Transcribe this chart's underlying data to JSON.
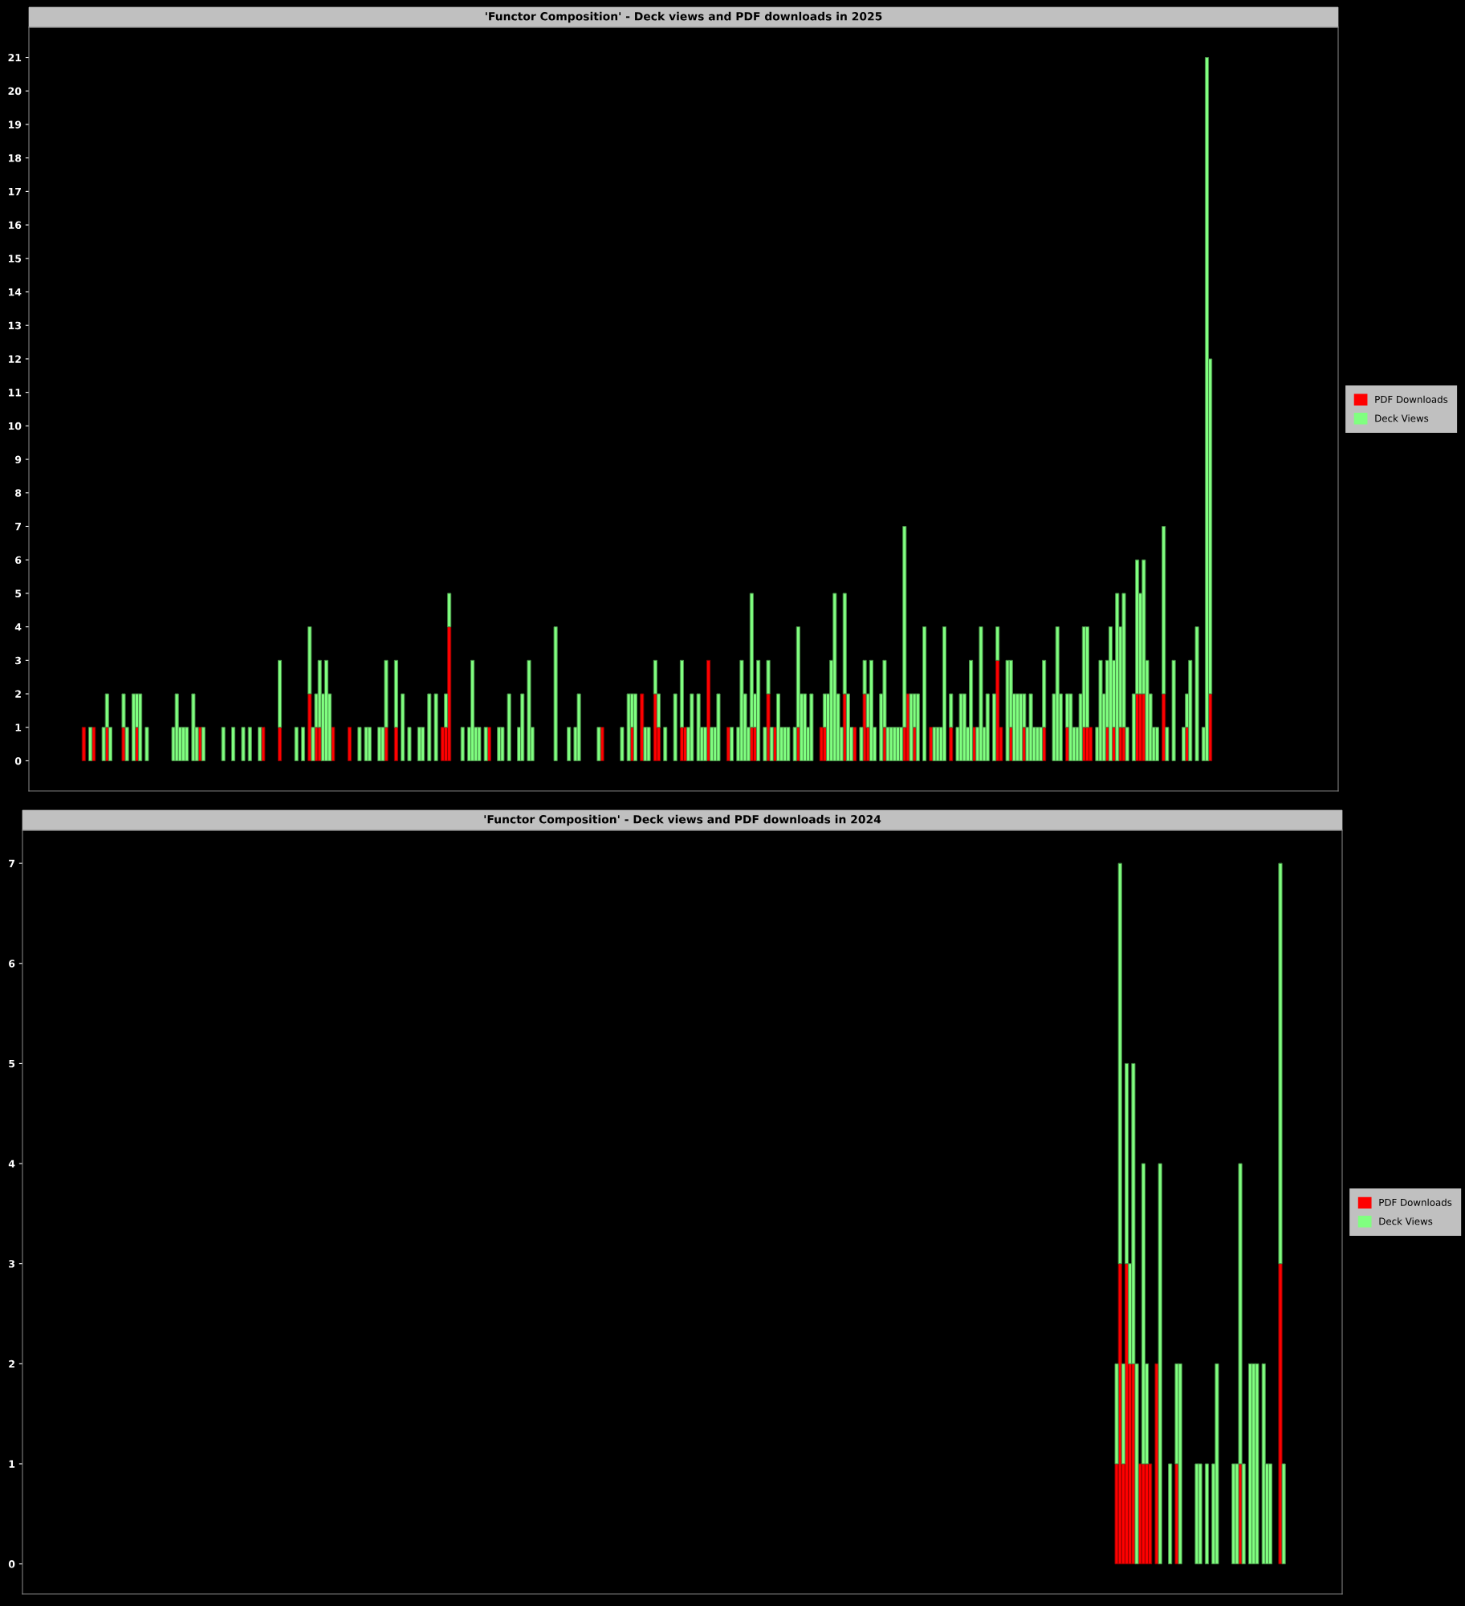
{
  "chart_data": [
    {
      "type": "bar",
      "title": "'Functor Composition' - Deck views and PDF downloads in 2025",
      "stacked": true,
      "legend": "right",
      "tick_labels": "y",
      "ylim": [
        -0.9,
        21.9
      ],
      "yticks": [
        0,
        1,
        2,
        3,
        4,
        5,
        6,
        7,
        8,
        9,
        10,
        11,
        12,
        13,
        14,
        15,
        16,
        17,
        18,
        19,
        20,
        21
      ],
      "categories": [
        null,
        null,
        null,
        null,
        null,
        null,
        null,
        null,
        null,
        null,
        null,
        null,
        null,
        null,
        null,
        null,
        null,
        null,
        null,
        null,
        null,
        null,
        null,
        null,
        null,
        null,
        null,
        null,
        null,
        null,
        null,
        null,
        null,
        null,
        null,
        null,
        null,
        null,
        null,
        null,
        null,
        null,
        null,
        null,
        null,
        null,
        null,
        null,
        null,
        null,
        null,
        null,
        null,
        null,
        null,
        null,
        null,
        null,
        null,
        null,
        null,
        null,
        null,
        null,
        null,
        null,
        null,
        null,
        null,
        null,
        null,
        null,
        null,
        null,
        null,
        null,
        null,
        null,
        null,
        null,
        null,
        null,
        null,
        null,
        null,
        null,
        null,
        null,
        null,
        null,
        null,
        null,
        null,
        null,
        null,
        null,
        null,
        null,
        null,
        null,
        null,
        null,
        null,
        null,
        null,
        null,
        null,
        null,
        null,
        null,
        null,
        null,
        null,
        null,
        null,
        null,
        null,
        null,
        null,
        null,
        null,
        null,
        null,
        null,
        null,
        null,
        null,
        null,
        null,
        null,
        null,
        null,
        null,
        null,
        null,
        null,
        null,
        null,
        null,
        null,
        null,
        null,
        null,
        null,
        null,
        null,
        null,
        null,
        null,
        null,
        null,
        null,
        null,
        null,
        null,
        null,
        null,
        null,
        null,
        null,
        null,
        null,
        null,
        null,
        null,
        null,
        null,
        null,
        null,
        null,
        null,
        null,
        null,
        null,
        null,
        null,
        null,
        null,
        null,
        null,
        null,
        null,
        null,
        null,
        null,
        null,
        null,
        null,
        null,
        null,
        null,
        null,
        null,
        null,
        null,
        null,
        null,
        null,
        null,
        null,
        null,
        null,
        null,
        null,
        null,
        null,
        null,
        null,
        null,
        null,
        null,
        null,
        null,
        null,
        null,
        null,
        null,
        null,
        null,
        null,
        null,
        null,
        null,
        null,
        null,
        null,
        null,
        null,
        null,
        null,
        null,
        null,
        null,
        null,
        null,
        null,
        null,
        null,
        null,
        null,
        null,
        null,
        null,
        null,
        null,
        null,
        null,
        null,
        null,
        null,
        null,
        null,
        null,
        null,
        null,
        null,
        null,
        null,
        null,
        null,
        null,
        null,
        null,
        null,
        null,
        null,
        null,
        null,
        null,
        null,
        null,
        null,
        null,
        null,
        null,
        null,
        null,
        null,
        null,
        null,
        null,
        null,
        null,
        null,
        null,
        null,
        null,
        null,
        null,
        null,
        null,
        null,
        null,
        null,
        null,
        null,
        null,
        null,
        null,
        null,
        null,
        null,
        null,
        null,
        null,
        null,
        null,
        null,
        null,
        null,
        null,
        null,
        null,
        null,
        null,
        null,
        null,
        null,
        null,
        null,
        null,
        null,
        null,
        null,
        null,
        null,
        null,
        null,
        null,
        null,
        null,
        null,
        null,
        null,
        null,
        null,
        null,
        null,
        null,
        null,
        null,
        null,
        null,
        null,
        null,
        null,
        null,
        null,
        null,
        null,
        null,
        null,
        null,
        null,
        null,
        null,
        null,
        null,
        null,
        null,
        null,
        null,
        null,
        null,
        null,
        null,
        null,
        null,
        null,
        null,
        null,
        null,
        null,
        null,
        null,
        null,
        null,
        null,
        null,
        null,
        null,
        null,
        null,
        null,
        null,
        null,
        null,
        null,
        null,
        null,
        null,
        null,
        null,
        null
      ],
      "series": [
        {
          "name": "PDF Downloads",
          "color": "#ff0000",
          "values": [
            null,
            null,
            null,
            null,
            null,
            null,
            null,
            null,
            null,
            null,
            null,
            null,
            null,
            null,
            null,
            0,
            1,
            0,
            0,
            1,
            0,
            0,
            0,
            1,
            0,
            0,
            0,
            0,
            1,
            0,
            0,
            0,
            1,
            0,
            0,
            0,
            0,
            0,
            0,
            0,
            0,
            0,
            0,
            0,
            0,
            0,
            0,
            0,
            0,
            0,
            0,
            1,
            0,
            0,
            0,
            0,
            0,
            0,
            0,
            0,
            0,
            0,
            0,
            0,
            0,
            0,
            0,
            0,
            0,
            0,
            1,
            0,
            0,
            0,
            0,
            1,
            0,
            0,
            0,
            0,
            0,
            0,
            0,
            0,
            2,
            0,
            1,
            1,
            0,
            0,
            0,
            1,
            0,
            0,
            0,
            0,
            1,
            0,
            0,
            0,
            0,
            0,
            0,
            0,
            0,
            0,
            0,
            1,
            0,
            0,
            1,
            0,
            0,
            0,
            0,
            0,
            0,
            0,
            0,
            0,
            0,
            0,
            0,
            0,
            1,
            1,
            4,
            0,
            0,
            0,
            0,
            0,
            0,
            0,
            0,
            0,
            0,
            0,
            1,
            0,
            0,
            0,
            0,
            0,
            0,
            0,
            0,
            0,
            0,
            0,
            0,
            0,
            0,
            0,
            0,
            0,
            0,
            0,
            0,
            0,
            0,
            0,
            0,
            0,
            0,
            0,
            0,
            0,
            0,
            0,
            0,
            0,
            1,
            0,
            0,
            0,
            0,
            0,
            0,
            0,
            0,
            1,
            0,
            0,
            2,
            0,
            0,
            0,
            2,
            1,
            0,
            0,
            0,
            0,
            0,
            0,
            1,
            1,
            0,
            0,
            0,
            0,
            0,
            0,
            3,
            0,
            0,
            0,
            0,
            0,
            1,
            0,
            0,
            0,
            0,
            0,
            0,
            1,
            1,
            0,
            0,
            0,
            2,
            0,
            1,
            0,
            0,
            0,
            0,
            0,
            0,
            1,
            0,
            0,
            0,
            0,
            0,
            0,
            1,
            1,
            0,
            0,
            0,
            0,
            0,
            2,
            0,
            0,
            1,
            0,
            0,
            2,
            1,
            0,
            0,
            0,
            0,
            1,
            0,
            0,
            0,
            0,
            0,
            1,
            2,
            0,
            1,
            0,
            0,
            0,
            0,
            1,
            0,
            0,
            0,
            0,
            0,
            1,
            0,
            0,
            0,
            0,
            0,
            0,
            1,
            0,
            0,
            0,
            0,
            0,
            0,
            3,
            1,
            0,
            0,
            1,
            0,
            0,
            0,
            1,
            0,
            0,
            0,
            0,
            0,
            1,
            0,
            0,
            0,
            0,
            0,
            0,
            1,
            0,
            0,
            0,
            0,
            1,
            1,
            1,
            0,
            0,
            0,
            0,
            1,
            0,
            1,
            0,
            1,
            1,
            0,
            0,
            0,
            2,
            2,
            2,
            0,
            0,
            0,
            0,
            0,
            2,
            0,
            0,
            0,
            0,
            0,
            0,
            1,
            0,
            0,
            0,
            0,
            0,
            0,
            2,
            0,
            0,
            0,
            0,
            0,
            0,
            0,
            0,
            0,
            0,
            0,
            0,
            0,
            0,
            0,
            0,
            0,
            0,
            0,
            0,
            0,
            0,
            0,
            0,
            null,
            null,
            null,
            null,
            null,
            null,
            null,
            null,
            null,
            null,
            null,
            null,
            null,
            null
          ]
        },
        {
          "name": "Deck Views",
          "color": "#80ff80",
          "values": [
            null,
            null,
            null,
            null,
            null,
            null,
            null,
            null,
            null,
            null,
            null,
            null,
            null,
            null,
            null,
            0,
            0,
            0,
            1,
            0,
            0,
            0,
            1,
            1,
            1,
            0,
            0,
            0,
            1,
            1,
            0,
            2,
            1,
            2,
            0,
            1,
            0,
            0,
            0,
            0,
            0,
            0,
            0,
            1,
            2,
            1,
            1,
            1,
            0,
            2,
            1,
            0,
            1,
            0,
            0,
            0,
            0,
            0,
            1,
            0,
            0,
            1,
            0,
            0,
            1,
            0,
            1,
            0,
            0,
            1,
            0,
            0,
            0,
            0,
            0,
            2,
            0,
            0,
            0,
            0,
            1,
            0,
            1,
            0,
            2,
            1,
            1,
            2,
            2,
            3,
            2,
            0,
            0,
            0,
            0,
            0,
            0,
            0,
            0,
            1,
            0,
            1,
            1,
            0,
            0,
            1,
            1,
            2,
            0,
            0,
            2,
            0,
            2,
            0,
            1,
            0,
            0,
            1,
            1,
            0,
            2,
            0,
            2,
            0,
            0,
            1,
            1,
            0,
            0,
            0,
            1,
            0,
            1,
            3,
            1,
            1,
            0,
            1,
            0,
            0,
            0,
            1,
            1,
            0,
            2,
            0,
            0,
            1,
            2,
            0,
            3,
            1,
            0,
            0,
            0,
            0,
            0,
            0,
            4,
            0,
            0,
            0,
            1,
            0,
            1,
            2,
            0,
            0,
            0,
            0,
            0,
            1,
            0,
            0,
            0,
            0,
            0,
            0,
            1,
            0,
            2,
            1,
            2,
            0,
            0,
            1,
            1,
            0,
            1,
            1,
            0,
            1,
            0,
            0,
            2,
            0,
            2,
            0,
            1,
            2,
            0,
            2,
            1,
            1,
            0,
            1,
            1,
            2,
            0,
            0,
            0,
            1,
            0,
            1,
            3,
            2,
            1,
            4,
            1,
            3,
            0,
            1,
            1,
            1,
            0,
            2,
            1,
            1,
            1,
            0,
            1,
            3,
            2,
            2,
            1,
            2,
            0,
            0,
            0,
            1,
            2,
            3,
            5,
            2,
            1,
            3,
            2,
            1,
            0,
            0,
            1,
            1,
            1,
            3,
            1,
            0,
            2,
            2,
            1,
            1,
            1,
            1,
            1,
            6,
            0,
            2,
            1,
            2,
            0,
            4,
            0,
            0,
            1,
            1,
            1,
            4,
            0,
            1,
            0,
            1,
            2,
            2,
            1,
            3,
            0,
            1,
            4,
            1,
            2,
            0,
            2,
            1,
            0,
            0,
            3,
            2,
            2,
            2,
            2,
            1,
            1,
            2,
            1,
            1,
            1,
            2,
            0,
            0,
            2,
            4,
            2,
            0,
            1,
            2,
            1,
            1,
            2,
            3,
            3,
            0,
            0,
            1,
            3,
            2,
            2,
            4,
            2,
            5,
            3,
            4,
            1,
            0,
            2,
            4,
            3,
            4,
            3,
            2,
            1,
            1,
            0,
            5,
            1,
            0,
            3,
            0,
            0,
            1,
            1,
            3,
            0,
            4,
            0,
            1,
            21,
            10,
            0,
            0,
            0,
            0,
            0,
            0,
            0,
            0,
            0,
            0,
            0,
            0,
            0,
            0,
            0,
            0,
            0,
            0,
            0,
            0,
            0,
            0,
            0,
            0,
            null,
            null,
            null,
            null,
            null,
            null,
            null,
            null,
            null,
            null,
            null,
            null,
            null,
            null
          ]
        }
      ]
    },
    {
      "type": "bar",
      "title": "'Functor Composition' - Deck views and PDF downloads in 2024",
      "stacked": true,
      "legend": "right",
      "tick_labels": "y",
      "ylim": [
        -0.3,
        7.33
      ],
      "yticks": [
        0,
        1,
        2,
        3,
        4,
        5,
        6,
        7
      ],
      "categories": [
        null,
        null,
        null,
        null,
        null,
        null,
        null,
        null,
        null,
        null,
        null,
        null,
        null,
        null,
        null,
        null,
        null,
        null,
        null,
        null,
        null,
        null,
        null,
        null,
        null,
        null,
        null,
        null,
        null,
        null,
        null,
        null,
        null,
        null,
        null,
        null,
        null,
        null,
        null,
        null,
        null,
        null,
        null,
        null,
        null,
        null,
        null,
        null,
        null,
        null,
        null,
        null,
        null,
        null,
        null,
        null,
        null,
        null,
        null,
        null,
        null,
        null,
        null,
        null,
        null,
        null,
        null,
        null,
        null,
        null,
        null,
        null,
        null,
        null,
        null,
        null,
        null,
        null,
        null,
        null,
        null,
        null,
        null,
        null,
        null,
        null,
        null,
        null,
        null,
        null,
        null,
        null,
        null,
        null,
        null,
        null,
        null,
        null,
        null,
        null,
        null,
        null,
        null,
        null,
        null,
        null,
        null,
        null,
        null,
        null,
        null,
        null,
        null,
        null,
        null,
        null,
        null,
        null,
        null,
        null,
        null,
        null,
        null,
        null,
        null,
        null,
        null,
        null,
        null,
        null,
        null,
        null,
        null,
        null,
        null,
        null,
        null,
        null,
        null,
        null,
        null,
        null,
        null,
        null,
        null,
        null,
        null,
        null,
        null,
        null,
        null,
        null,
        null,
        null,
        null,
        null,
        null,
        null,
        null,
        null,
        null,
        null,
        null,
        null,
        null,
        null,
        null,
        null,
        null,
        null,
        null,
        null,
        null,
        null,
        null,
        null,
        null,
        null,
        null,
        null,
        null,
        null,
        null,
        null,
        null,
        null,
        null,
        null,
        null,
        null,
        null,
        null,
        null,
        null,
        null,
        null,
        null,
        null,
        null,
        null,
        null,
        null,
        null,
        null,
        null,
        null,
        null,
        null,
        null,
        null,
        null,
        null,
        null,
        null,
        null,
        null,
        null,
        null,
        null,
        null,
        null,
        null,
        null,
        null,
        null,
        null,
        null,
        null,
        null,
        null,
        null,
        null,
        null,
        null,
        null,
        null,
        null,
        null,
        null,
        null,
        null,
        null,
        null,
        null,
        null,
        null,
        null,
        null,
        null,
        null,
        null,
        null,
        null,
        null,
        null,
        null,
        null,
        null,
        null,
        null,
        null,
        null,
        null,
        null,
        null,
        null,
        null,
        null,
        null,
        null,
        null,
        null,
        null,
        null,
        null,
        null,
        null,
        null,
        null,
        null,
        null,
        null,
        null,
        null,
        null,
        null,
        null,
        null,
        null,
        null,
        null,
        null,
        null,
        null,
        null,
        null,
        null,
        null,
        null,
        null,
        null,
        null,
        null,
        null,
        null,
        null,
        null,
        null,
        null,
        null,
        null,
        null,
        null,
        null,
        null,
        null,
        null,
        null,
        null,
        null,
        null,
        null,
        null,
        null,
        null,
        null,
        null,
        null,
        null,
        null,
        null,
        null,
        null,
        null,
        null,
        null,
        null,
        null,
        null,
        null,
        null,
        null,
        null,
        null,
        null,
        null,
        null,
        null,
        null,
        null,
        null,
        null,
        null,
        null,
        null,
        null,
        null,
        null,
        null,
        null,
        null,
        null,
        null,
        null,
        null,
        null,
        null,
        null,
        null,
        null,
        null,
        null,
        null,
        null,
        null,
        null,
        null,
        null,
        null,
        null,
        null,
        null,
        null,
        null,
        null,
        null,
        null,
        null,
        null,
        null,
        null,
        null,
        null,
        null,
        null
      ],
      "series": [
        {
          "name": "PDF Downloads",
          "color": "#ff0000",
          "values": [
            null,
            null,
            null,
            null,
            null,
            null,
            null,
            null,
            null,
            null,
            null,
            null,
            null,
            null,
            0,
            0,
            0,
            0,
            0,
            0,
            0,
            0,
            0,
            0,
            0,
            0,
            0,
            0,
            0,
            0,
            0,
            0,
            0,
            0,
            0,
            0,
            0,
            0,
            0,
            0,
            0,
            0,
            0,
            0,
            0,
            0,
            0,
            0,
            0,
            0,
            0,
            0,
            0,
            0,
            0,
            0,
            0,
            0,
            0,
            0,
            0,
            0,
            0,
            0,
            0,
            0,
            0,
            0,
            0,
            0,
            0,
            0,
            0,
            0,
            0,
            0,
            0,
            0,
            0,
            0,
            0,
            0,
            0,
            0,
            0,
            0,
            0,
            0,
            0,
            0,
            0,
            0,
            0,
            0,
            0,
            0,
            0,
            0,
            0,
            0,
            0,
            0,
            0,
            0,
            0,
            0,
            0,
            0,
            0,
            0,
            0,
            0,
            0,
            0,
            0,
            0,
            0,
            0,
            0,
            0,
            0,
            0,
            0,
            0,
            0,
            0,
            0,
            0,
            0,
            0,
            0,
            0,
            0,
            0,
            0,
            0,
            0,
            0,
            0,
            0,
            0,
            0,
            0,
            0,
            0,
            0,
            0,
            0,
            0,
            0,
            0,
            0,
            0,
            0,
            0,
            0,
            0,
            0,
            0,
            0,
            0,
            0,
            0,
            0,
            0,
            0,
            0,
            0,
            0,
            0,
            0,
            0,
            0,
            0,
            0,
            0,
            0,
            0,
            0,
            0,
            0,
            0,
            0,
            0,
            0,
            0,
            0,
            0,
            0,
            0,
            0,
            0,
            0,
            0,
            0,
            0,
            0,
            0,
            0,
            0,
            0,
            0,
            0,
            0,
            0,
            0,
            0,
            0,
            0,
            0,
            0,
            0,
            0,
            0,
            0,
            0,
            0,
            0,
            0,
            0,
            0,
            0,
            0,
            0,
            0,
            0,
            0,
            0,
            0,
            0,
            0,
            0,
            0,
            0,
            0,
            0,
            0,
            0,
            0,
            0,
            0,
            0,
            0,
            0,
            0,
            0,
            0,
            0,
            0,
            0,
            0,
            0,
            0,
            0,
            0,
            0,
            0,
            0,
            0,
            0,
            0,
            0,
            0,
            0,
            0,
            0,
            0,
            0,
            0,
            0,
            0,
            0,
            0,
            0,
            0,
            0,
            0,
            0,
            0,
            0,
            0,
            0,
            0,
            0,
            0,
            0,
            0,
            0,
            0,
            0,
            0,
            0,
            0,
            0,
            0,
            0,
            0,
            0,
            0,
            0,
            0,
            0,
            0,
            0,
            0,
            0,
            0,
            0,
            0,
            0,
            0,
            0,
            0,
            0,
            0,
            0,
            0,
            0,
            0,
            0,
            0,
            0,
            0,
            0,
            0,
            0,
            0,
            1,
            3,
            1,
            3,
            2,
            2,
            0,
            1,
            1,
            1,
            1,
            0,
            2,
            0,
            0,
            0,
            0,
            0,
            1,
            0,
            0,
            0,
            0,
            0,
            0,
            0,
            0,
            0,
            0,
            0,
            0,
            0,
            0,
            0,
            0,
            0,
            0,
            1,
            0,
            0,
            0,
            0,
            0,
            0,
            0,
            0,
            0,
            0,
            0,
            3,
            0,
            0,
            0,
            null,
            null,
            null,
            null,
            null,
            null,
            null,
            null,
            null,
            null,
            null,
            null,
            null,
            null,
            null
          ]
        },
        {
          "name": "Deck Views",
          "color": "#80ff80",
          "values": [
            null,
            null,
            null,
            null,
            null,
            null,
            null,
            null,
            null,
            null,
            null,
            null,
            null,
            null,
            0,
            0,
            0,
            0,
            0,
            0,
            0,
            0,
            0,
            0,
            0,
            0,
            0,
            0,
            0,
            0,
            0,
            0,
            0,
            0,
            0,
            0,
            0,
            0,
            0,
            0,
            0,
            0,
            0,
            0,
            0,
            0,
            0,
            0,
            0,
            0,
            0,
            0,
            0,
            0,
            0,
            0,
            0,
            0,
            0,
            0,
            0,
            0,
            0,
            0,
            0,
            0,
            0,
            0,
            0,
            0,
            0,
            0,
            0,
            0,
            0,
            0,
            0,
            0,
            0,
            0,
            0,
            0,
            0,
            0,
            0,
            0,
            0,
            0,
            0,
            0,
            0,
            0,
            0,
            0,
            0,
            0,
            0,
            0,
            0,
            0,
            0,
            0,
            0,
            0,
            0,
            0,
            0,
            0,
            0,
            0,
            0,
            0,
            0,
            0,
            0,
            0,
            0,
            0,
            0,
            0,
            0,
            0,
            0,
            0,
            0,
            0,
            0,
            0,
            0,
            0,
            0,
            0,
            0,
            0,
            0,
            0,
            0,
            0,
            0,
            0,
            0,
            0,
            0,
            0,
            0,
            0,
            0,
            0,
            0,
            0,
            0,
            0,
            0,
            0,
            0,
            0,
            0,
            0,
            0,
            0,
            0,
            0,
            0,
            0,
            0,
            0,
            0,
            0,
            0,
            0,
            0,
            0,
            0,
            0,
            0,
            0,
            0,
            0,
            0,
            0,
            0,
            0,
            0,
            0,
            0,
            0,
            0,
            0,
            0,
            0,
            0,
            0,
            0,
            0,
            0,
            0,
            0,
            0,
            0,
            0,
            0,
            0,
            0,
            0,
            0,
            0,
            0,
            0,
            0,
            0,
            0,
            0,
            0,
            0,
            0,
            0,
            0,
            0,
            0,
            0,
            0,
            0,
            0,
            0,
            0,
            0,
            0,
            0,
            0,
            0,
            0,
            0,
            0,
            0,
            0,
            0,
            0,
            0,
            0,
            0,
            0,
            0,
            0,
            0,
            0,
            0,
            0,
            0,
            0,
            0,
            0,
            0,
            0,
            0,
            0,
            0,
            0,
            0,
            0,
            0,
            0,
            0,
            0,
            0,
            0,
            0,
            0,
            0,
            0,
            0,
            0,
            0,
            0,
            0,
            0,
            0,
            0,
            0,
            0,
            0,
            0,
            0,
            0,
            0,
            0,
            0,
            0,
            0,
            0,
            0,
            0,
            0,
            0,
            0,
            0,
            0,
            0,
            0,
            0,
            0,
            0,
            0,
            0,
            0,
            0,
            0,
            0,
            0,
            0,
            0,
            0,
            0,
            0,
            0,
            0,
            0,
            0,
            0,
            0,
            0,
            0,
            0,
            0,
            0,
            0,
            0,
            0,
            1,
            4,
            1,
            2,
            1,
            3,
            2,
            0,
            3,
            1,
            0,
            0,
            0,
            4,
            0,
            0,
            1,
            0,
            1,
            2,
            0,
            0,
            0,
            0,
            1,
            1,
            0,
            1,
            0,
            1,
            2,
            0,
            0,
            0,
            0,
            1,
            1,
            3,
            1,
            0,
            2,
            2,
            2,
            0,
            2,
            1,
            1,
            0,
            0,
            4,
            1,
            0,
            0,
            null,
            null,
            null,
            null,
            null,
            null,
            null,
            null,
            null,
            null,
            null,
            null,
            null,
            null,
            null
          ]
        }
      ]
    }
  ]
}
